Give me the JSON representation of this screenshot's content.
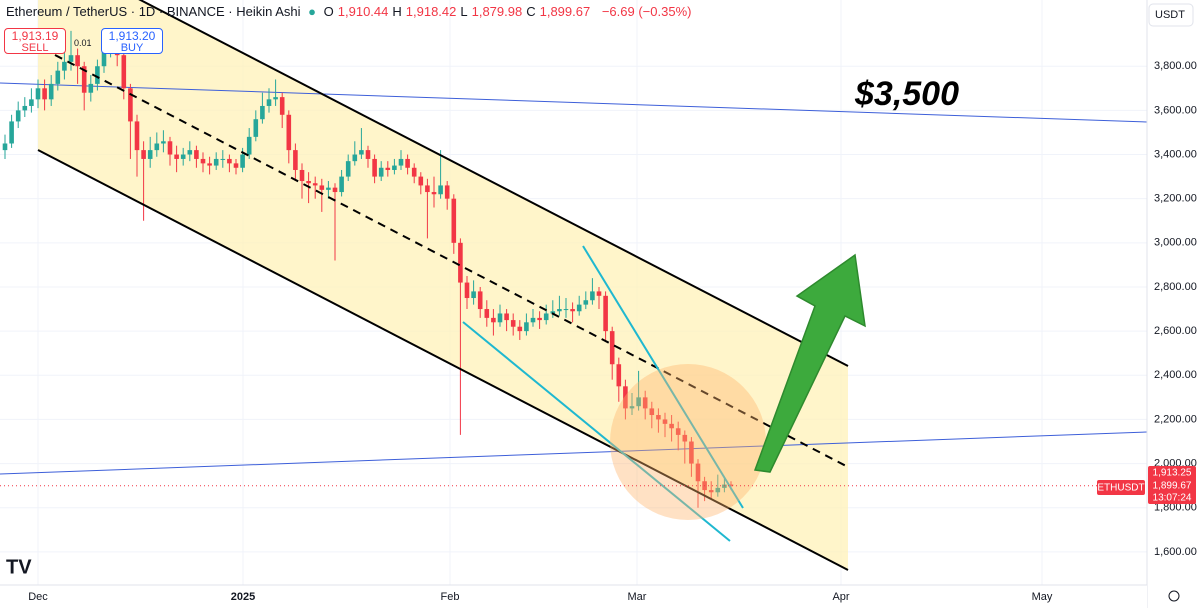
{
  "chart_data": {
    "type": "candlestick",
    "title": "Ethereum / TetherUS · 1D · BINANCE · Heikin Ashi",
    "ohlc_header": [
      {
        "key": "O",
        "value": "1,910.44"
      },
      {
        "key": "H",
        "value": "1,918.42"
      },
      {
        "key": "L",
        "value": "1,879.98"
      },
      {
        "key": "C",
        "value": "1,899.67"
      }
    ],
    "change": "−6.69 (−0.35%)",
    "sell": {
      "price": "1,913.19",
      "label": "SELL"
    },
    "spread": "0.01",
    "buy": {
      "price": "1,913.20",
      "label": "BUY"
    },
    "annotation": "$3,500",
    "currency": "USDT",
    "symbol_label": "ETHUSDT",
    "price_box": [
      "1,913.25",
      "1,899.67",
      "13:07:24"
    ],
    "last_price": {
      "value": 1899.67,
      "label": "1,899.67"
    },
    "x_labels": [
      "Dec",
      "2025",
      "Feb",
      "Mar",
      "Apr",
      "May"
    ],
    "ylim": [
      1450,
      4100
    ],
    "yticks": [
      {
        "value": 3800,
        "label": "3,800.00"
      },
      {
        "value": 3600,
        "label": "3,600.00"
      },
      {
        "value": 3400,
        "label": "3,400.00"
      },
      {
        "value": 3200,
        "label": "3,200.00"
      },
      {
        "value": 3000,
        "label": "3,000.00"
      },
      {
        "value": 2800,
        "label": "2,800.00"
      },
      {
        "value": 2600,
        "label": "2,600.00"
      },
      {
        "value": 2400,
        "label": "2,400.00"
      },
      {
        "value": 2200,
        "label": "2,200.00"
      },
      {
        "value": 2000,
        "label": "2,000.00"
      },
      {
        "value": 1800,
        "label": "1,800.00"
      },
      {
        "value": 1600,
        "label": "1,600.00"
      }
    ],
    "up_color": "#26a69a",
    "down_color": "#f23645",
    "candles": [
      [
        3420,
        3490,
        3380,
        3450
      ],
      [
        3450,
        3580,
        3430,
        3550
      ],
      [
        3550,
        3640,
        3520,
        3600
      ],
      [
        3600,
        3660,
        3570,
        3620
      ],
      [
        3620,
        3700,
        3590,
        3650
      ],
      [
        3650,
        3740,
        3610,
        3700
      ],
      [
        3700,
        3740,
        3600,
        3650
      ],
      [
        3650,
        3760,
        3620,
        3720
      ],
      [
        3720,
        3820,
        3690,
        3780
      ],
      [
        3780,
        3900,
        3740,
        3820
      ],
      [
        3820,
        3960,
        3780,
        3850
      ],
      [
        3850,
        3880,
        3720,
        3800
      ],
      [
        3800,
        3820,
        3600,
        3680
      ],
      [
        3680,
        3760,
        3640,
        3720
      ],
      [
        3720,
        3830,
        3690,
        3800
      ],
      [
        3800,
        3920,
        3770,
        3880
      ],
      [
        3880,
        3950,
        3840,
        3900
      ],
      [
        3900,
        3930,
        3800,
        3850
      ],
      [
        3850,
        3880,
        3650,
        3700
      ],
      [
        3700,
        3720,
        3380,
        3550
      ],
      [
        3550,
        3580,
        3300,
        3420
      ],
      [
        3420,
        3460,
        3100,
        3380
      ],
      [
        3380,
        3480,
        3340,
        3420
      ],
      [
        3420,
        3500,
        3390,
        3450
      ],
      [
        3450,
        3510,
        3410,
        3460
      ],
      [
        3460,
        3480,
        3350,
        3400
      ],
      [
        3400,
        3440,
        3320,
        3380
      ],
      [
        3380,
        3430,
        3350,
        3400
      ],
      [
        3400,
        3460,
        3370,
        3420
      ],
      [
        3420,
        3440,
        3340,
        3380
      ],
      [
        3380,
        3410,
        3320,
        3360
      ],
      [
        3360,
        3390,
        3310,
        3350
      ],
      [
        3350,
        3410,
        3330,
        3380
      ],
      [
        3380,
        3420,
        3340,
        3380
      ],
      [
        3380,
        3400,
        3320,
        3360
      ],
      [
        3360,
        3380,
        3310,
        3340
      ],
      [
        3340,
        3430,
        3320,
        3400
      ],
      [
        3400,
        3520,
        3380,
        3480
      ],
      [
        3480,
        3600,
        3460,
        3560
      ],
      [
        3560,
        3680,
        3540,
        3620
      ],
      [
        3620,
        3700,
        3590,
        3650
      ],
      [
        3650,
        3740,
        3620,
        3660
      ],
      [
        3660,
        3680,
        3520,
        3580
      ],
      [
        3580,
        3600,
        3360,
        3420
      ],
      [
        3420,
        3450,
        3280,
        3330
      ],
      [
        3330,
        3360,
        3200,
        3280
      ],
      [
        3280,
        3320,
        3180,
        3270
      ],
      [
        3270,
        3300,
        3200,
        3260
      ],
      [
        3260,
        3290,
        3140,
        3240
      ],
      [
        3240,
        3280,
        3200,
        3250
      ],
      [
        3250,
        3270,
        2920,
        3230
      ],
      [
        3230,
        3330,
        3210,
        3300
      ],
      [
        3300,
        3400,
        3280,
        3370
      ],
      [
        3370,
        3460,
        3350,
        3400
      ],
      [
        3400,
        3520,
        3380,
        3420
      ],
      [
        3420,
        3440,
        3340,
        3380
      ],
      [
        3380,
        3400,
        3270,
        3300
      ],
      [
        3300,
        3370,
        3280,
        3340
      ],
      [
        3340,
        3370,
        3300,
        3330
      ],
      [
        3330,
        3380,
        3310,
        3350
      ],
      [
        3350,
        3420,
        3330,
        3380
      ],
      [
        3380,
        3400,
        3310,
        3340
      ],
      [
        3340,
        3360,
        3270,
        3300
      ],
      [
        3300,
        3320,
        3220,
        3260
      ],
      [
        3260,
        3290,
        3020,
        3230
      ],
      [
        3230,
        3300,
        3160,
        3220
      ],
      [
        3220,
        3420,
        3200,
        3260
      ],
      [
        3260,
        3280,
        3150,
        3200
      ],
      [
        3200,
        3220,
        2950,
        3000
      ],
      [
        3000,
        3020,
        2130,
        2820
      ],
      [
        2820,
        2850,
        2700,
        2750
      ],
      [
        2750,
        2830,
        2720,
        2780
      ],
      [
        2780,
        2800,
        2660,
        2700
      ],
      [
        2700,
        2740,
        2620,
        2660
      ],
      [
        2660,
        2700,
        2580,
        2640
      ],
      [
        2640,
        2720,
        2620,
        2680
      ],
      [
        2680,
        2700,
        2600,
        2650
      ],
      [
        2650,
        2680,
        2580,
        2620
      ],
      [
        2620,
        2650,
        2560,
        2600
      ],
      [
        2600,
        2680,
        2580,
        2640
      ],
      [
        2640,
        2700,
        2620,
        2660
      ],
      [
        2660,
        2690,
        2610,
        2650
      ],
      [
        2650,
        2720,
        2630,
        2680
      ],
      [
        2680,
        2740,
        2660,
        2690
      ],
      [
        2690,
        2760,
        2670,
        2700
      ],
      [
        2700,
        2750,
        2660,
        2700
      ],
      [
        2700,
        2730,
        2640,
        2690
      ],
      [
        2690,
        2760,
        2670,
        2720
      ],
      [
        2720,
        2780,
        2700,
        2740
      ],
      [
        2740,
        2840,
        2720,
        2780
      ],
      [
        2780,
        2800,
        2700,
        2760
      ],
      [
        2760,
        2780,
        2560,
        2600
      ],
      [
        2600,
        2620,
        2380,
        2450
      ],
      [
        2450,
        2480,
        2280,
        2350
      ],
      [
        2350,
        2380,
        2200,
        2250
      ],
      [
        2250,
        2320,
        2220,
        2260
      ],
      [
        2260,
        2420,
        2240,
        2300
      ],
      [
        2300,
        2330,
        2200,
        2250
      ],
      [
        2250,
        2280,
        2160,
        2220
      ],
      [
        2220,
        2250,
        2140,
        2200
      ],
      [
        2200,
        2230,
        2120,
        2180
      ],
      [
        2180,
        2220,
        2100,
        2160
      ],
      [
        2160,
        2190,
        2060,
        2130
      ],
      [
        2130,
        2150,
        2000,
        2100
      ],
      [
        2100,
        2120,
        1940,
        2000
      ],
      [
        2000,
        2020,
        1800,
        1920
      ],
      [
        1920,
        1940,
        1830,
        1880
      ],
      [
        1880,
        1920,
        1840,
        1870
      ],
      [
        1870,
        1950,
        1850,
        1890
      ],
      [
        1890,
        1940,
        1870,
        1905
      ],
      [
        1905,
        1920,
        1880,
        1900
      ]
    ]
  }
}
